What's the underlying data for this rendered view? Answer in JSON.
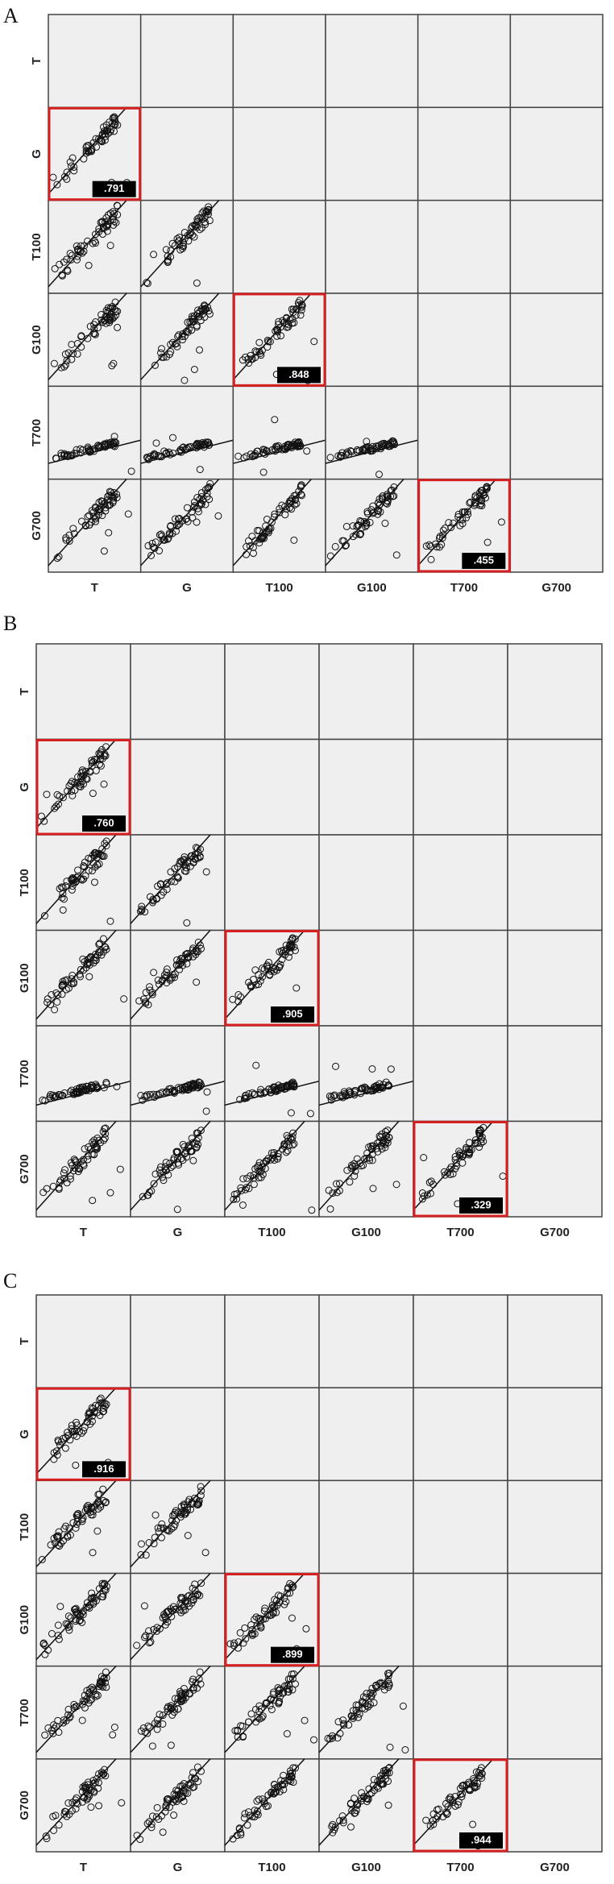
{
  "panels": [
    {
      "label": "A",
      "row_labels": [
        "T",
        "G",
        "T100",
        "G100",
        "T700",
        "G700"
      ],
      "column_labels": [
        "T",
        "G",
        "T100",
        "G100",
        "T700",
        "G700"
      ],
      "correlations": {
        "values": [
          0.791,
          0.848,
          0.455
        ],
        "value_labels": [
          ".791",
          ".848",
          ".455"
        ]
      }
    },
    {
      "label": "B",
      "row_labels": [
        "T",
        "G",
        "T100",
        "G100",
        "T700",
        "G700"
      ],
      "column_labels": [
        "T",
        "G",
        "T100",
        "G100",
        "T700",
        "G700"
      ],
      "correlations": {
        "values": [
          0.76,
          0.905,
          0.329
        ],
        "value_labels": [
          ".760",
          ".905",
          ".329"
        ]
      }
    },
    {
      "label": "C",
      "row_labels": [
        "T",
        "G",
        "T100",
        "G100",
        "T700",
        "G700"
      ],
      "column_labels": [
        "T",
        "G",
        "T100",
        "G100",
        "T700",
        "G700"
      ],
      "correlations": {
        "values": [
          0.916,
          0.899,
          0.944
        ],
        "value_labels": [
          ".916",
          ".899",
          ".944"
        ]
      }
    }
  ]
}
